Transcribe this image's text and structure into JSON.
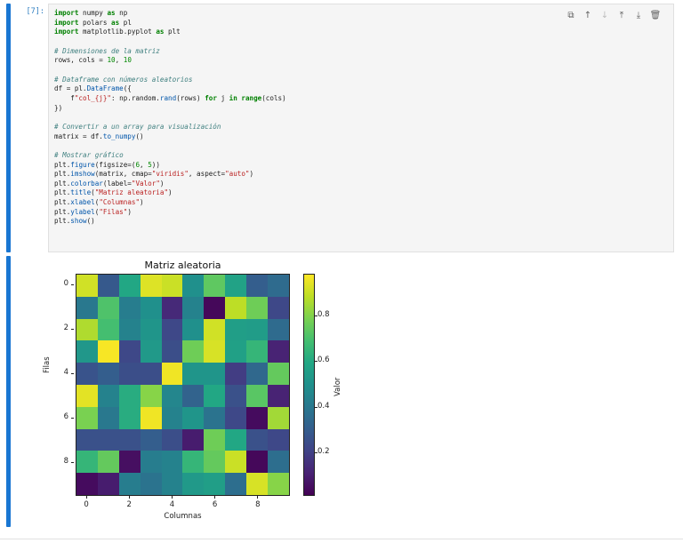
{
  "cell": {
    "prompt": "[7]:",
    "toolbar": [
      {
        "name": "duplicate-cell-icon",
        "glyph": "⧉",
        "disabled": false
      },
      {
        "name": "move-up-icon",
        "glyph": "↑",
        "disabled": false
      },
      {
        "name": "move-down-icon",
        "glyph": "↓",
        "disabled": true
      },
      {
        "name": "insert-above-icon",
        "glyph": "⤒",
        "disabled": false
      },
      {
        "name": "insert-below-icon",
        "glyph": "⤓",
        "disabled": false
      },
      {
        "name": "delete-cell-icon",
        "glyph": "🗑",
        "disabled": false
      }
    ],
    "code_lines": [
      "import numpy as np",
      "import polars as pl",
      "import matplotlib.pyplot as plt",
      "",
      "# Dimensiones de la matriz",
      "rows, cols = 10, 10",
      "",
      "# Dataframe con números aleatorios",
      "df = pl.DataFrame({",
      "    f\"col_{j}\": np.random.rand(rows) for j in range(cols)",
      "})",
      "",
      "# Convertir a un array para visualización",
      "matrix = df.to_numpy()",
      "",
      "# Mostrar gráfico",
      "plt.figure(figsize=(6, 5))",
      "plt.imshow(matrix, cmap=\"viridis\", aspect=\"auto\")",
      "plt.colorbar(label=\"Valor\")",
      "plt.title(\"Matriz aleatoria\")",
      "plt.xlabel(\"Columnas\")",
      "plt.ylabel(\"Filas\")",
      "plt.show()"
    ]
  },
  "colors": {
    "cell_bar": "#1976d2",
    "code_bg": "#f5f5f5",
    "prompt": "#307fc1"
  },
  "chart_data": {
    "type": "heatmap",
    "title": "Matriz aleatoria",
    "xlabel": "Columnas",
    "ylabel": "Filas",
    "colorbar_label": "Valor",
    "cmap": "viridis",
    "x_ticks": [
      "0",
      "2",
      "4",
      "6",
      "8"
    ],
    "y_ticks": [
      "0",
      "2",
      "4",
      "6",
      "8"
    ],
    "colorbar_ticks": [
      "0.2",
      "0.4",
      "0.6",
      "0.8"
    ],
    "colorbar_range": [
      0.01,
      0.99
    ],
    "rows": 10,
    "cols": 10,
    "values": [
      [
        0.93,
        0.28,
        0.6,
        0.95,
        0.92,
        0.5,
        0.75,
        0.58,
        0.3,
        0.35
      ],
      [
        0.4,
        0.72,
        0.42,
        0.5,
        0.12,
        0.44,
        0.02,
        0.9,
        0.78,
        0.22
      ],
      [
        0.88,
        0.7,
        0.44,
        0.52,
        0.22,
        0.5,
        0.93,
        0.56,
        0.55,
        0.35
      ],
      [
        0.53,
        0.99,
        0.22,
        0.54,
        0.24,
        0.78,
        0.94,
        0.57,
        0.66,
        0.1
      ],
      [
        0.26,
        0.3,
        0.24,
        0.24,
        0.98,
        0.52,
        0.52,
        0.18,
        0.34,
        0.76
      ],
      [
        0.96,
        0.44,
        0.62,
        0.82,
        0.46,
        0.32,
        0.6,
        0.25,
        0.74,
        0.1
      ],
      [
        0.8,
        0.4,
        0.62,
        0.98,
        0.44,
        0.52,
        0.38,
        0.22,
        0.03,
        0.86
      ],
      [
        0.25,
        0.25,
        0.25,
        0.3,
        0.24,
        0.08,
        0.78,
        0.6,
        0.25,
        0.22
      ],
      [
        0.66,
        0.76,
        0.04,
        0.42,
        0.44,
        0.66,
        0.76,
        0.92,
        0.02,
        0.36
      ],
      [
        0.03,
        0.08,
        0.42,
        0.38,
        0.44,
        0.54,
        0.56,
        0.36,
        0.94,
        0.82
      ]
    ]
  }
}
